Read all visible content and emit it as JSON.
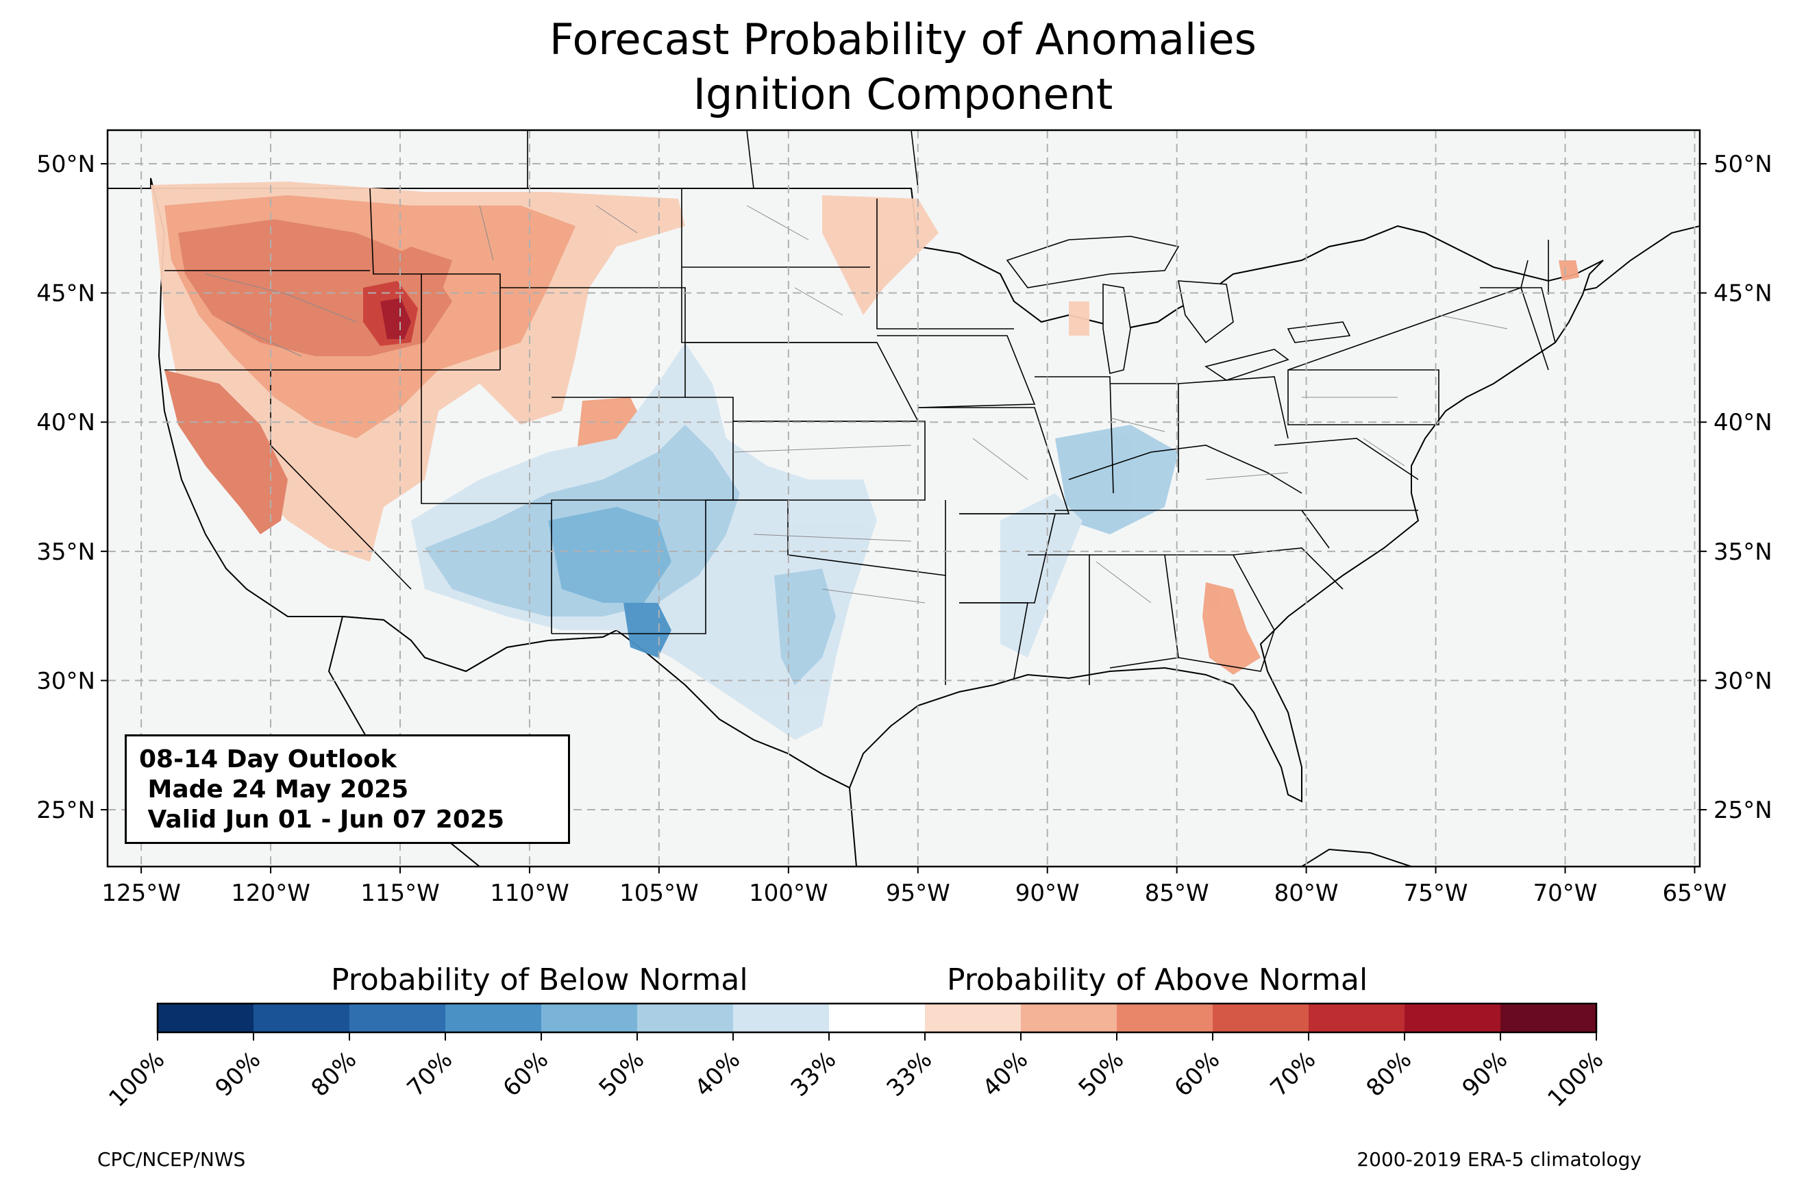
{
  "title": {
    "line1": "Forecast Probability of Anomalies",
    "line2": "Ignition Component"
  },
  "outlook": {
    "line1": "08-14 Day Outlook",
    "line2": " Made 24 May 2025",
    "line3": " Valid Jun 01 - Jun 07 2025"
  },
  "map": {
    "lon_range": [
      -126.3,
      -64.8
    ],
    "lat_range": [
      22.8,
      51.3
    ],
    "lon_ticks": [
      "125°W",
      "120°W",
      "115°W",
      "110°W",
      "105°W",
      "100°W",
      "95°W",
      "90°W",
      "85°W",
      "80°W",
      "75°W",
      "70°W",
      "65°W"
    ],
    "lat_ticks": [
      "25°N",
      "30°N",
      "35°N",
      "40°N",
      "45°N",
      "50°N"
    ],
    "ocean_color": "#f4f6f6",
    "grid": true
  },
  "colorbar": {
    "below_label": "Probability of Below Normal",
    "above_label": "Probability of Above Normal",
    "tick_labels": [
      "100%",
      "90%",
      "80%",
      "70%",
      "60%",
      "50%",
      "40%",
      "33%",
      "33%",
      "40%",
      "50%",
      "60%",
      "70%",
      "80%",
      "90%",
      "100%"
    ],
    "colors": [
      "#08306b",
      "#1a5396",
      "#2f6fb0",
      "#4a92c6",
      "#79b4d8",
      "#aacfe5",
      "#d2e5f1",
      "#ffffff",
      "#fbdcca",
      "#f4b296",
      "#e9866a",
      "#d55846",
      "#be2e30",
      "#a21425",
      "#6a0a20"
    ]
  },
  "credits": {
    "left": "CPC/NCEP/NWS",
    "right": "2000-2019 ERA-5 climatology"
  }
}
